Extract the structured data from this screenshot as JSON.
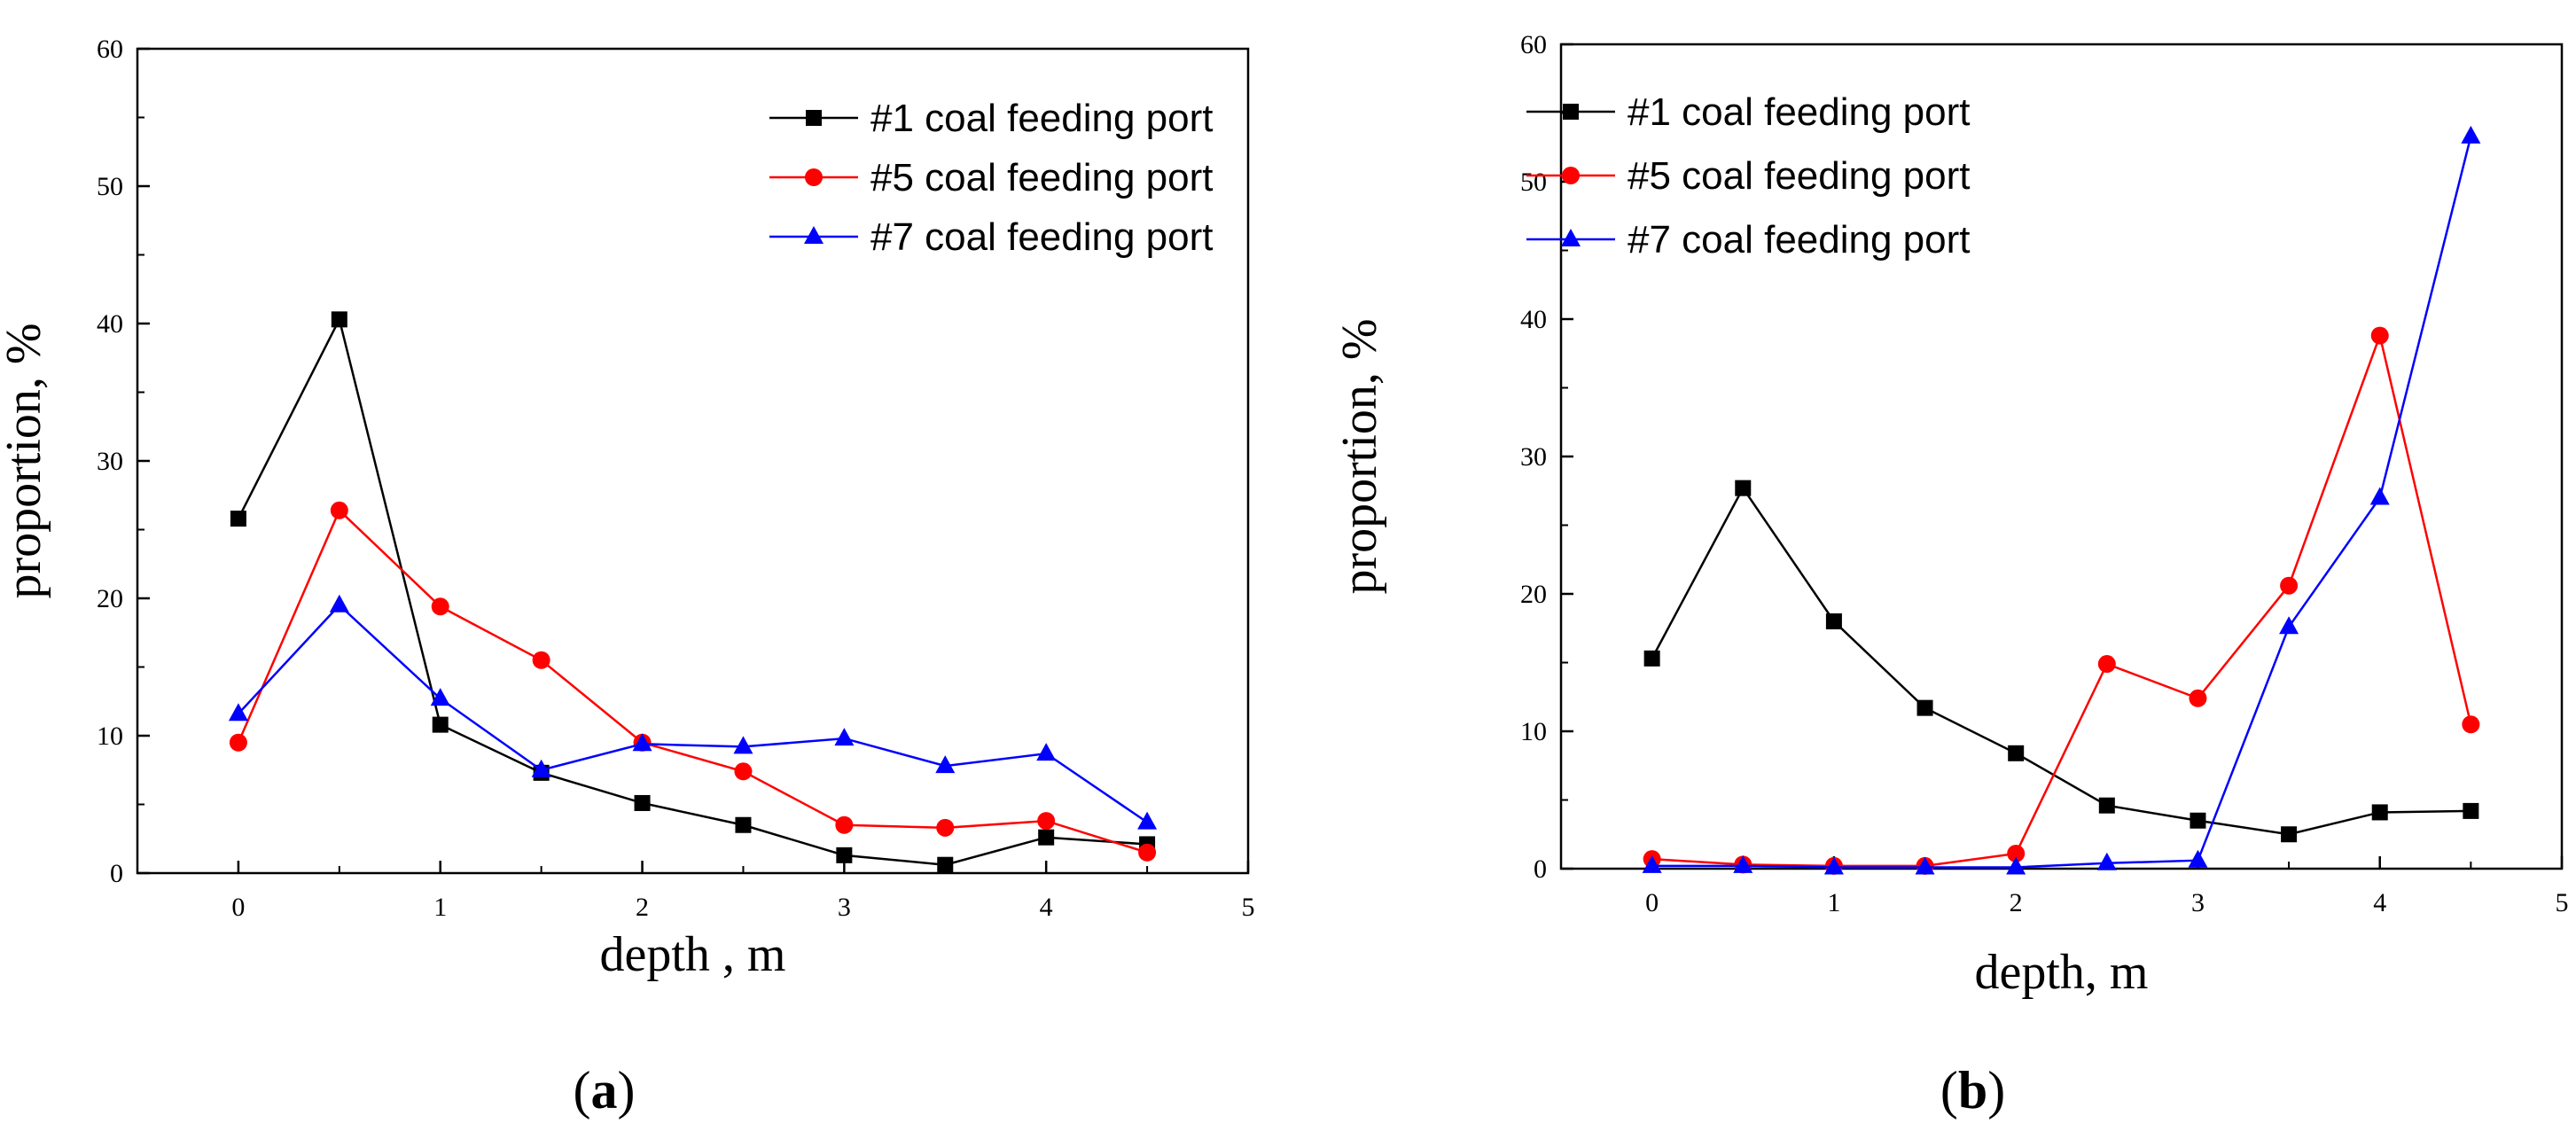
{
  "chart_data": [
    {
      "type": "line",
      "panel_label": "(a)",
      "panel_letter": "a",
      "xlabel": "depth , m",
      "ylabel": "proportion, %",
      "xlim": [
        -0.5,
        5
      ],
      "ylim": [
        0,
        60
      ],
      "xticks": [
        0,
        1,
        2,
        3,
        4,
        5
      ],
      "yticks": [
        0,
        10,
        20,
        30,
        40,
        50,
        60
      ],
      "legend_position": "top-right",
      "x": [
        0,
        0.5,
        1,
        1.5,
        2,
        2.5,
        3,
        3.5,
        4,
        4.5
      ],
      "series": [
        {
          "name": "#1 coal feeding port",
          "color": "#000000",
          "marker": "square",
          "values": [
            25.8,
            40.3,
            10.8,
            7.3,
            5.1,
            3.5,
            1.3,
            0.6,
            2.6,
            2.1
          ]
        },
        {
          "name": "#5 coal feeding port",
          "color": "#ff0000",
          "marker": "circle",
          "values": [
            9.5,
            26.4,
            19.4,
            15.5,
            9.5,
            7.4,
            3.5,
            3.3,
            3.8,
            1.5
          ]
        },
        {
          "name": "#7 coal feeding port",
          "color": "#0000ff",
          "marker": "triangle",
          "values": [
            11.6,
            19.5,
            12.7,
            7.5,
            9.4,
            9.2,
            9.8,
            7.8,
            8.7,
            3.7
          ]
        }
      ]
    },
    {
      "type": "line",
      "panel_label": "(b)",
      "panel_letter": "b",
      "xlabel": "depth, m",
      "ylabel": "proportion, %",
      "xlim": [
        -0.5,
        5
      ],
      "ylim": [
        0,
        60
      ],
      "xticks": [
        0,
        1,
        2,
        3,
        4,
        5
      ],
      "yticks": [
        0,
        10,
        20,
        30,
        40,
        50,
        60
      ],
      "legend_position": "top-left",
      "x": [
        0,
        0.5,
        1,
        1.5,
        2,
        2.5,
        3,
        3.5,
        4,
        4.5
      ],
      "series": [
        {
          "name": "#1 coal feeding port",
          "color": "#000000",
          "marker": "square",
          "values": [
            15.3,
            27.7,
            18.0,
            11.7,
            8.4,
            4.6,
            3.5,
            2.5,
            4.1,
            4.2
          ]
        },
        {
          "name": "#5 coal feeding port",
          "color": "#ff0000",
          "marker": "circle",
          "values": [
            0.7,
            0.3,
            0.2,
            0.2,
            1.1,
            14.9,
            12.4,
            20.6,
            38.8,
            10.5
          ]
        },
        {
          "name": "#7 coal feeding port",
          "color": "#0000ff",
          "marker": "triangle",
          "values": [
            0.2,
            0.2,
            0.1,
            0.1,
            0.1,
            0.4,
            0.6,
            17.6,
            27.0,
            53.3
          ]
        }
      ]
    }
  ]
}
